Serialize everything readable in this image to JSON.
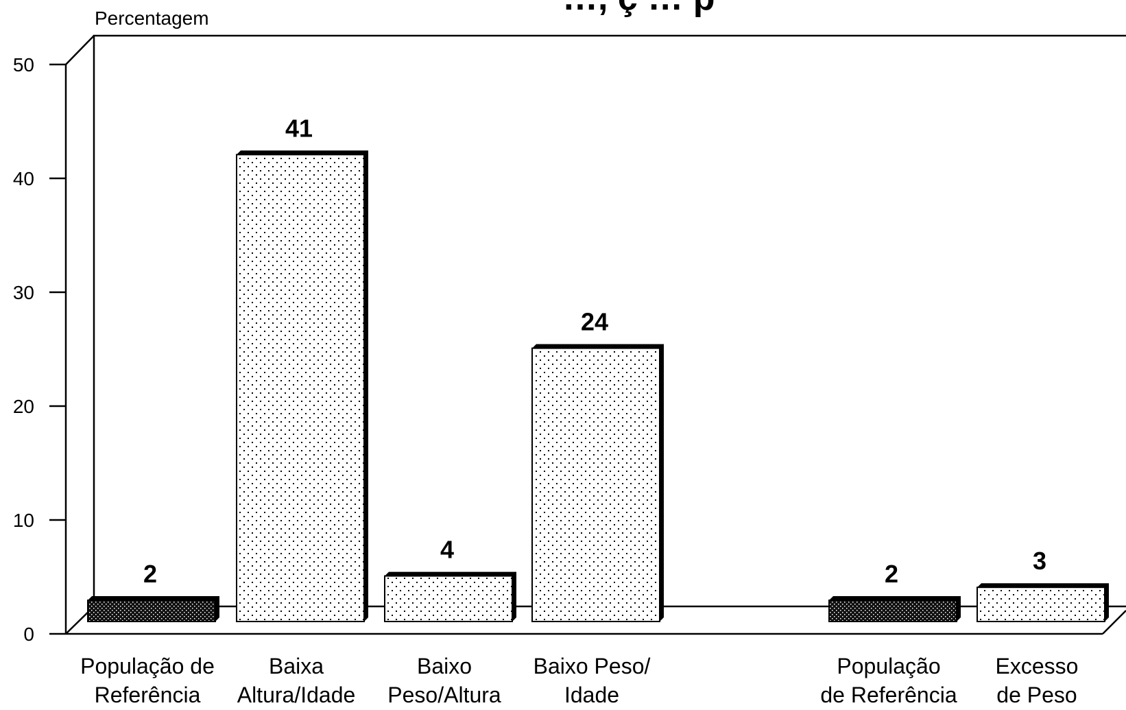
{
  "chart_data": {
    "type": "bar",
    "title": "…, ç … p",
    "ylabel": "Percentagem",
    "xlabel": "",
    "ylim": [
      0,
      50
    ],
    "yticks": [
      0,
      10,
      20,
      30,
      40,
      50
    ],
    "grid": false,
    "legend": "none",
    "style": "3d",
    "categories": [
      {
        "lines": [
          "População de",
          "Referência"
        ],
        "value": 2,
        "value_label": "2",
        "pattern": "dense"
      },
      {
        "lines": [
          "Baixa",
          "Altura/Idade"
        ],
        "value": 41,
        "value_label": "41",
        "pattern": "light"
      },
      {
        "lines": [
          "Baixo",
          "Peso/Altura"
        ],
        "value": 4,
        "value_label": "4",
        "pattern": "light"
      },
      {
        "lines": [
          "Baixo Peso/",
          "Idade"
        ],
        "value": 24,
        "value_label": "24",
        "pattern": "light"
      },
      {
        "lines": [
          "População",
          "de Referência"
        ],
        "value": 2,
        "value_label": "2",
        "pattern": "dense"
      },
      {
        "lines": [
          "Excesso",
          "de Peso"
        ],
        "value": 3,
        "value_label": "3",
        "pattern": "light"
      }
    ]
  }
}
